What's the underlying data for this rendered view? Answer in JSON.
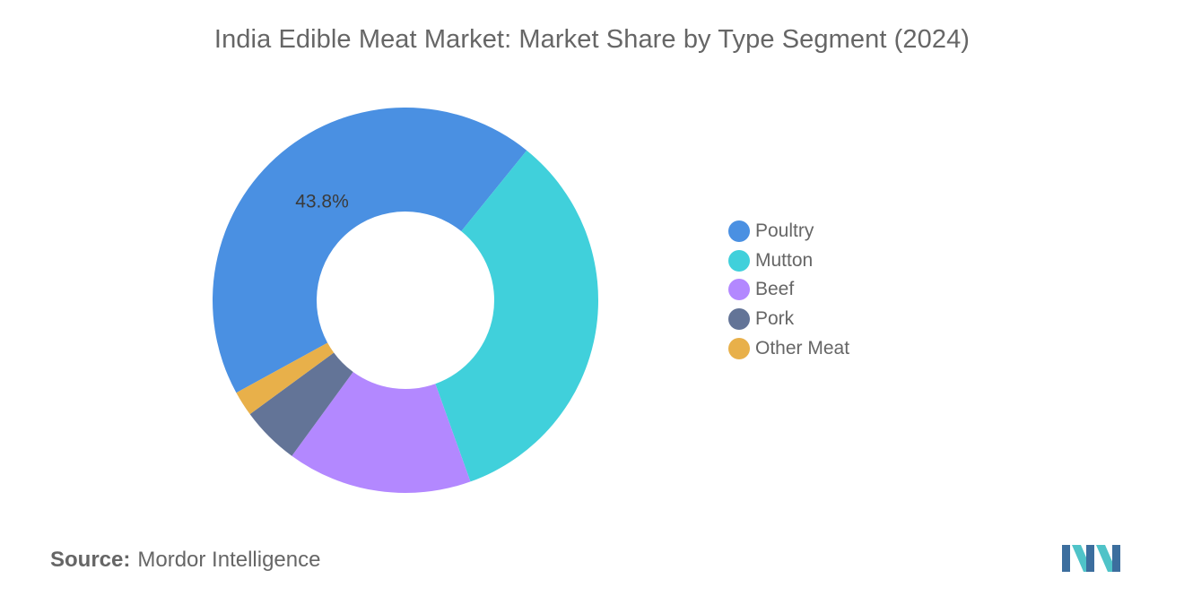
{
  "chart_data": {
    "type": "pie",
    "title": "India Edible Meat Market: Market Share by Type Segment (2024)",
    "donut": true,
    "legend_position": "right",
    "categories": [
      "Poultry",
      "Mutton",
      "Beef",
      "Pork",
      "Other Meat"
    ],
    "values": [
      43.8,
      33.7,
      15.5,
      4.9,
      2.1
    ],
    "colors": [
      "#4A90E2",
      "#40D0DB",
      "#B388FF",
      "#637497",
      "#E8B04A"
    ],
    "data_labels": [
      "43.8%",
      "",
      "",
      "",
      ""
    ]
  },
  "source": {
    "label": "Source:",
    "text": "Mordor Intelligence"
  },
  "logo": {
    "icon": "mordor-intelligence-logo"
  }
}
